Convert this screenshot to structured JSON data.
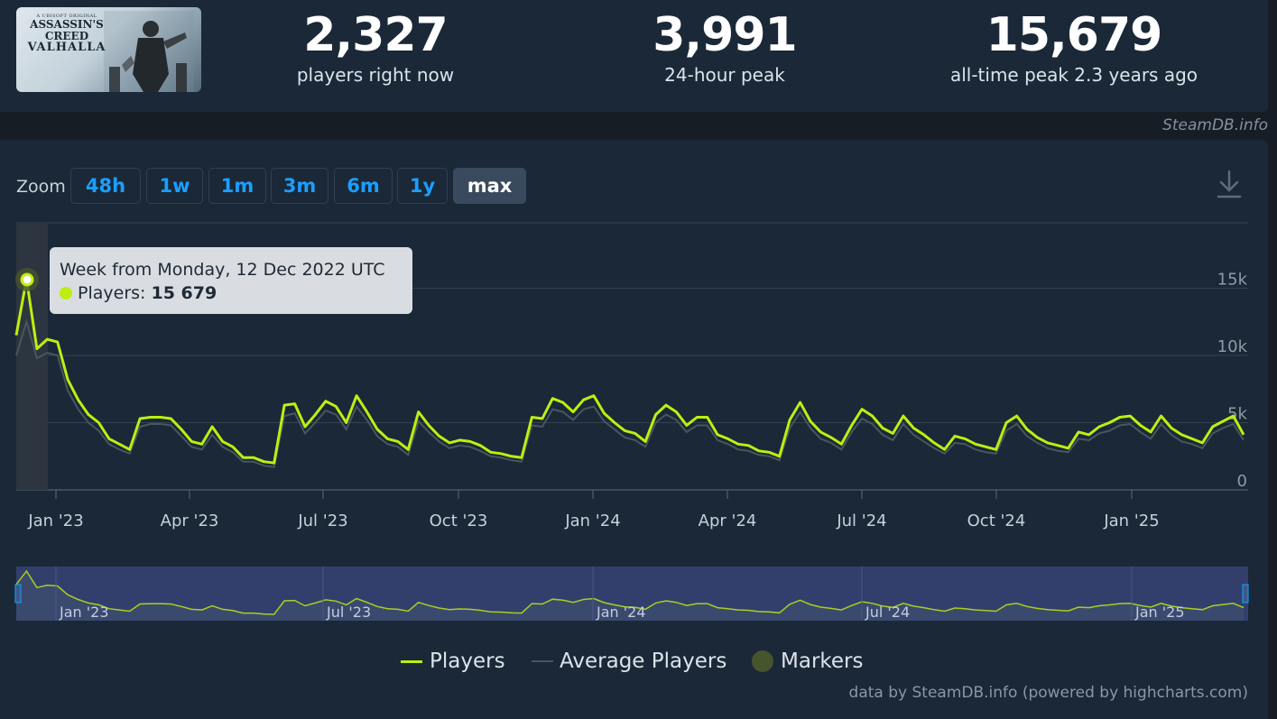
{
  "game": {
    "thumb_small": "A UBISOFT ORIGINAL",
    "thumb_brand_1": "ASSASSIN'S",
    "thumb_brand_2": "CREED",
    "thumb_game": "VALHALLA"
  },
  "stats": {
    "now_value": "2,327",
    "now_label": "players right now",
    "peak24_value": "3,991",
    "peak24_label": "24-hour peak",
    "alltime_value": "15,679",
    "alltime_label": "all-time peak 2.3 years ago"
  },
  "credit_top": "SteamDB.info",
  "zoom": {
    "label": "Zoom",
    "buttons": [
      "48h",
      "1w",
      "1m",
      "3m",
      "6m",
      "1y",
      "max"
    ],
    "active": "max"
  },
  "tooltip": {
    "title": "Week from Monday, 12 Dec 2022 UTC",
    "series_label": "Players:",
    "value": "15 679"
  },
  "legend": {
    "players": "Players",
    "average": "Average Players",
    "markers": "Markers"
  },
  "credit_bottom": "data by SteamDB.info (powered by highcharts.com)",
  "colors": {
    "players": "#beee11",
    "average": "#4a555f",
    "marker": "#46552c",
    "accent": "#1a9fff",
    "navigator_bg": "#323f6d"
  },
  "icons": {
    "download": "download-icon"
  },
  "chart_data": {
    "type": "line",
    "ylim": [
      0,
      20000
    ],
    "y_ticks": [
      0,
      5000,
      10000,
      15000
    ],
    "y_tick_labels": [
      "0",
      "5k",
      "10k",
      "15k"
    ],
    "x_tick_labels": [
      "Jan '23",
      "Apr '23",
      "Jul '23",
      "Oct '23",
      "Jan '24",
      "Apr '24",
      "Jul '24",
      "Oct '24",
      "Jan '25"
    ],
    "navigator_labels": [
      "Jan '23",
      "Jul '23",
      "Jan '24",
      "Jul '24",
      "Jan '25"
    ],
    "legend_position": "bottom",
    "grid": true,
    "series": [
      {
        "name": "Players",
        "values": [
          11500,
          15679,
          10500,
          11200,
          11000,
          8200,
          6700,
          5600,
          5000,
          3800,
          3400,
          3000,
          5300,
          5400,
          5400,
          5300,
          4500,
          3600,
          3400,
          4700,
          3600,
          3200,
          2400,
          2400,
          2100,
          2000,
          6300,
          6400,
          4700,
          5600,
          6600,
          6200,
          5000,
          7000,
          5800,
          4500,
          3800,
          3600,
          3000,
          5800,
          4800,
          4000,
          3500,
          3700,
          3600,
          3300,
          2800,
          2700,
          2500,
          2400,
          5400,
          5300,
          6800,
          6500,
          5800,
          6700,
          7000,
          5700,
          5000,
          4400,
          4200,
          3600,
          5600,
          6300,
          5800,
          4800,
          5400,
          5400,
          4100,
          3800,
          3400,
          3300,
          2900,
          2800,
          2500,
          5200,
          6500,
          5100,
          4300,
          3900,
          3400,
          4800,
          6000,
          5500,
          4600,
          4200,
          5500,
          4600,
          4100,
          3500,
          3000,
          4000,
          3800,
          3400,
          3200,
          3000,
          5000,
          5500,
          4500,
          3900,
          3500,
          3300,
          3100,
          4300,
          4100,
          4700,
          5000,
          5400,
          5500,
          4800,
          4300,
          5500,
          4600,
          4100,
          3800,
          3500,
          4700,
          5100,
          5500,
          4100
        ]
      },
      {
        "name": "Average Players",
        "values": [
          10000,
          12500,
          9800,
          10200,
          10000,
          7400,
          6000,
          5000,
          4400,
          3400,
          3000,
          2700,
          4700,
          4900,
          4900,
          4800,
          4000,
          3200,
          3000,
          4100,
          3200,
          2800,
          2100,
          2100,
          1800,
          1700,
          5500,
          5700,
          4200,
          5000,
          5900,
          5600,
          4500,
          6200,
          5200,
          4000,
          3400,
          3200,
          2600,
          5100,
          4300,
          3600,
          3100,
          3300,
          3200,
          2900,
          2500,
          2400,
          2200,
          2100,
          4800,
          4700,
          6000,
          5800,
          5200,
          6000,
          6200,
          5100,
          4500,
          3900,
          3700,
          3200,
          5000,
          5600,
          5200,
          4300,
          4800,
          4800,
          3700,
          3400,
          3000,
          2900,
          2600,
          2500,
          2200,
          4600,
          5800,
          4600,
          3800,
          3500,
          3000,
          4300,
          5300,
          4900,
          4100,
          3700,
          4900,
          4100,
          3600,
          3100,
          2700,
          3500,
          3400,
          3000,
          2800,
          2700,
          4400,
          4900,
          4000,
          3500,
          3100,
          2900,
          2800,
          3800,
          3700,
          4200,
          4400,
          4800,
          4900,
          4300,
          3800,
          4900,
          4100,
          3600,
          3400,
          3100,
          4200,
          4600,
          4900,
          3700
        ]
      }
    ]
  }
}
